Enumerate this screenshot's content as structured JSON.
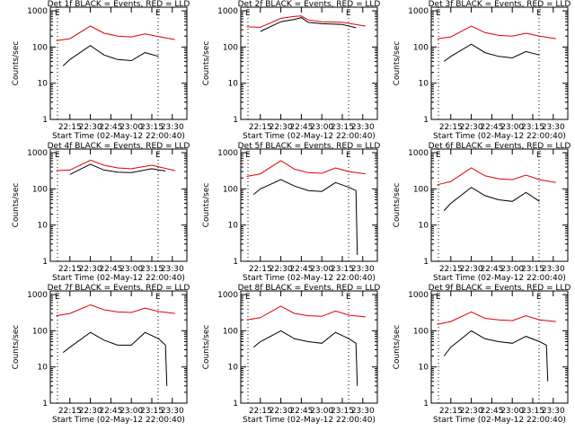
{
  "chart_data": {
    "type": "line",
    "xlabel": "Start Time (02-May-12 22:00:40)",
    "ylabel": "Counts/sec",
    "x_ticks": [
      "22:15",
      "22:30",
      "22:45",
      "23:00",
      "23:15",
      "23:30"
    ],
    "y_ticks": [
      "1",
      "10",
      "100",
      "1000"
    ],
    "ylim": [
      1,
      1000
    ],
    "y_scale": "log",
    "marker_letter": "E",
    "colors": {
      "red": "#e00000",
      "black": "#000000"
    },
    "panels": [
      {
        "title": "Det 1f BLACK = Events, RED = LLD",
        "series": [
          {
            "x": [
              "22:05",
              "22:15",
              "22:30",
              "22:40",
              "22:50",
              "23:00",
              "23:10",
              "23:20",
              "23:32"
            ],
            "y": [
              150,
              170,
              380,
              240,
              200,
              190,
              230,
              195,
              160
            ]
          },
          {
            "x": [
              "22:10",
              "22:15",
              "22:30",
              "22:40",
              "22:50",
              "23:00",
              "23:10",
              "23:20"
            ],
            "y": [
              30,
              45,
              110,
              60,
              45,
              42,
              70,
              55
            ]
          }
        ]
      },
      {
        "title": "Det 2f BLACK = Events, RED = LLD",
        "series": [
          {
            "x": [
              "22:05",
              "22:15",
              "22:30",
              "22:40",
              "22:45",
              "22:50",
              "23:00",
              "23:15",
              "23:32"
            ],
            "y": [
              360,
              350,
              620,
              700,
              720,
              560,
              500,
              480,
              380
            ]
          },
          {
            "x": [
              "22:15",
              "22:30",
              "22:40",
              "22:45",
              "22:50",
              "23:00",
              "23:15",
              "23:25"
            ],
            "y": [
              270,
              500,
              580,
              650,
              480,
              440,
              420,
              340
            ]
          }
        ]
      },
      {
        "title": "Det 3f BLACK = Events, RED = LLD",
        "series": [
          {
            "x": [
              "22:05",
              "22:15",
              "22:30",
              "22:40",
              "22:50",
              "23:00",
              "23:10",
              "23:20",
              "23:32"
            ],
            "y": [
              170,
              190,
              380,
              250,
              210,
              200,
              240,
              200,
              170
            ]
          },
          {
            "x": [
              "22:10",
              "22:15",
              "22:30",
              "22:40",
              "22:50",
              "23:00",
              "23:10",
              "23:20"
            ],
            "y": [
              40,
              55,
              120,
              70,
              55,
              50,
              75,
              60
            ]
          }
        ]
      },
      {
        "title": "Det 4f BLACK = Events, RED = LLD",
        "series": [
          {
            "x": [
              "22:05",
              "22:15",
              "22:30",
              "22:40",
              "22:50",
              "23:00",
              "23:15",
              "23:32"
            ],
            "y": [
              320,
              330,
              620,
              450,
              380,
              360,
              450,
              320
            ]
          },
          {
            "x": [
              "22:15",
              "22:30",
              "22:40",
              "22:50",
              "23:00",
              "23:15",
              "23:25"
            ],
            "y": [
              250,
              480,
              330,
              290,
              280,
              360,
              310
            ]
          }
        ]
      },
      {
        "title": "Det 5f BLACK = Events, RED = LLD",
        "series": [
          {
            "x": [
              "22:05",
              "22:15",
              "22:30",
              "22:40",
              "22:50",
              "23:00",
              "23:10",
              "23:20",
              "23:32"
            ],
            "y": [
              220,
              260,
              600,
              350,
              280,
              270,
              380,
              300,
              260
            ]
          },
          {
            "x": [
              "22:10",
              "22:15",
              "22:30",
              "22:40",
              "22:50",
              "23:00",
              "23:10",
              "23:20",
              "23:25",
              "23:26"
            ],
            "y": [
              70,
              100,
              180,
              120,
              90,
              85,
              150,
              110,
              90,
              1.5
            ]
          }
        ]
      },
      {
        "title": "Det 6f BLACK = Events, RED = LLD",
        "series": [
          {
            "x": [
              "22:05",
              "22:15",
              "22:30",
              "22:40",
              "22:50",
              "23:00",
              "23:10",
              "23:20",
              "23:32"
            ],
            "y": [
              130,
              160,
              380,
              230,
              190,
              180,
              240,
              180,
              150
            ]
          },
          {
            "x": [
              "22:10",
              "22:15",
              "22:30",
              "22:40",
              "22:50",
              "23:00",
              "23:10",
              "23:20"
            ],
            "y": [
              25,
              40,
              110,
              65,
              50,
              45,
              80,
              45
            ]
          }
        ]
      },
      {
        "title": "Det 7f BLACK = Events, RED = LLD",
        "series": [
          {
            "x": [
              "22:05",
              "22:15",
              "22:30",
              "22:40",
              "22:50",
              "23:00",
              "23:10",
              "23:20",
              "23:32"
            ],
            "y": [
              260,
              300,
              520,
              380,
              330,
              320,
              420,
              340,
              300
            ]
          },
          {
            "x": [
              "22:10",
              "22:15",
              "22:30",
              "22:40",
              "22:50",
              "23:00",
              "23:10",
              "23:20",
              "23:25",
              "23:26"
            ],
            "y": [
              25,
              35,
              90,
              55,
              40,
              40,
              90,
              60,
              40,
              3
            ]
          }
        ]
      },
      {
        "title": "Det 8f BLACK = Events, RED = LLD",
        "series": [
          {
            "x": [
              "22:05",
              "22:15",
              "22:30",
              "22:40",
              "22:50",
              "23:00",
              "23:10",
              "23:20",
              "23:32"
            ],
            "y": [
              200,
              230,
              480,
              300,
              260,
              250,
              350,
              270,
              240
            ]
          },
          {
            "x": [
              "22:10",
              "22:15",
              "22:30",
              "22:40",
              "22:50",
              "23:00",
              "23:10",
              "23:20",
              "23:25",
              "23:26"
            ],
            "y": [
              35,
              50,
              100,
              60,
              50,
              45,
              90,
              60,
              45,
              3
            ]
          }
        ]
      },
      {
        "title": "Det 9f BLACK = Events, RED = LLD",
        "series": [
          {
            "x": [
              "22:05",
              "22:15",
              "22:30",
              "22:40",
              "22:50",
              "23:00",
              "23:10",
              "23:20",
              "23:32"
            ],
            "y": [
              150,
              180,
              330,
              220,
              200,
              190,
              260,
              200,
              180
            ]
          },
          {
            "x": [
              "22:10",
              "22:15",
              "22:30",
              "22:40",
              "22:50",
              "23:00",
              "23:10",
              "23:20",
              "23:25",
              "23:26"
            ],
            "y": [
              20,
              35,
              100,
              60,
              50,
              45,
              70,
              50,
              40,
              4
            ]
          }
        ]
      }
    ]
  }
}
